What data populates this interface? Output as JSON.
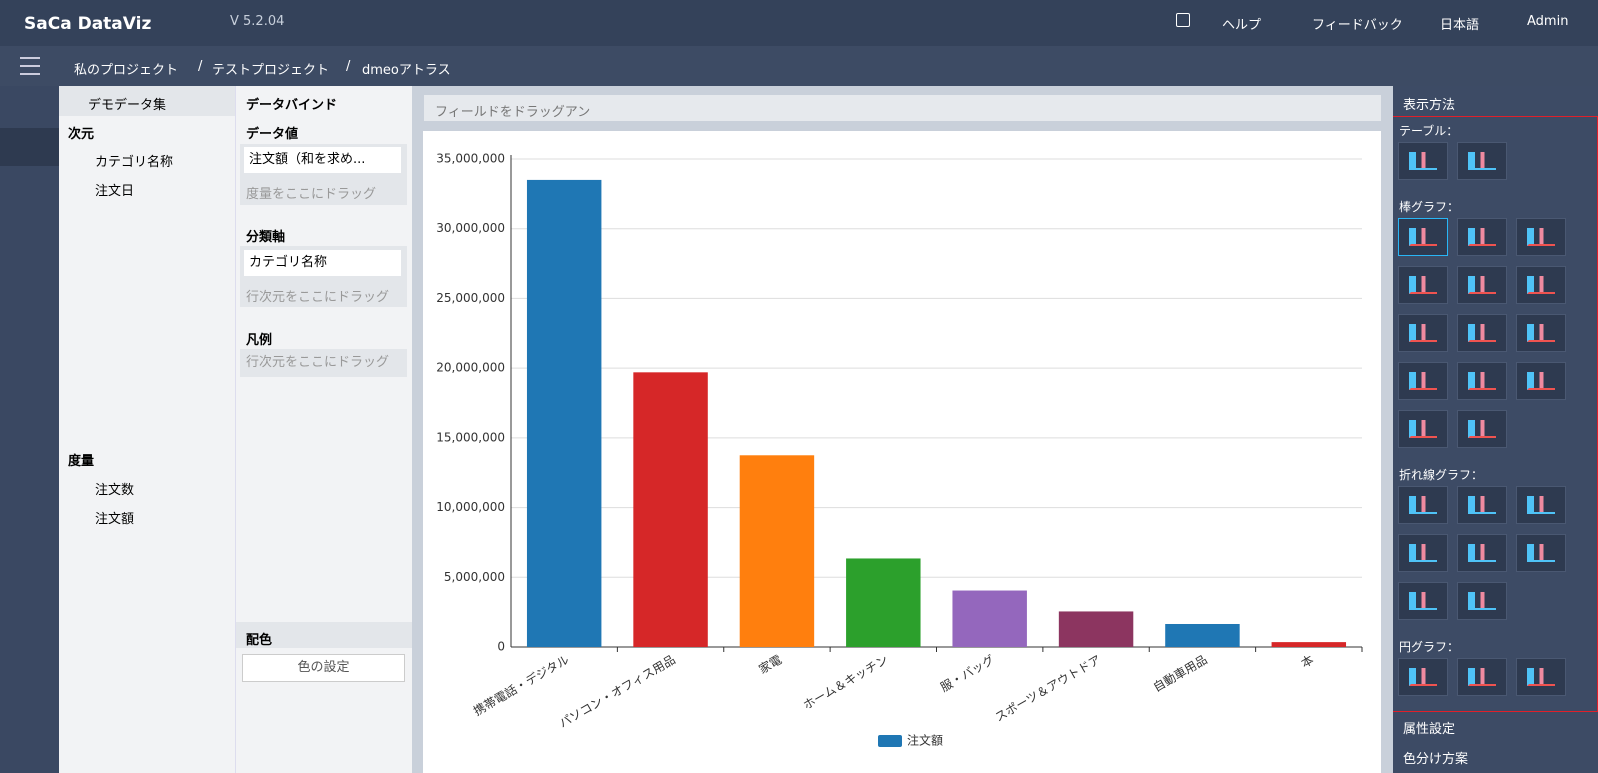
{
  "header": {
    "logo": "SaCa DataViz",
    "version": "V 5.2.04",
    "help": "ヘルプ",
    "feedback": "フィードバック",
    "language": "日本語",
    "user": "Admin"
  },
  "breadcrumb": {
    "items": [
      "私のプロジェクト",
      "テストプロジェクト",
      "dmeoアトラス"
    ],
    "separator": "/"
  },
  "dataset": {
    "title": "デモデータ集",
    "dimensions_label": "次元",
    "dimensions": [
      "カテゴリ名称",
      "注文日"
    ],
    "measures_label": "度量",
    "measures": [
      "注文数",
      "注文額"
    ]
  },
  "binding": {
    "title": "データバインド",
    "value_label": "データ値",
    "value_field": "注文額（和を求め...",
    "value_hint": "度量をここにドラッグ",
    "axis_label": "分類軸",
    "axis_field": "カテゴリ名称",
    "axis_hint": "行次元をここにドラッグ",
    "legend_label": "凡例",
    "legend_hint": "行次元をここにドラッグ",
    "color_label": "配色",
    "color_button": "色の設定"
  },
  "canvas_hint": "フィールドをドラッグアン",
  "chart_data": {
    "type": "bar",
    "categories": [
      "携帯電話・デジタル",
      "パソコン・オフィス用品",
      "家電",
      "ホーム＆キッチン",
      "服・バッグ",
      "スポーツ＆アウトドア",
      "自動車用品",
      "本"
    ],
    "series": [
      {
        "name": "注文額",
        "color": "#1f77b4",
        "colors": [
          "#1f77b4",
          "#d62728",
          "#ff7f0e",
          "#2ca02c",
          "#9467bd",
          "#8c3560",
          "#1f77b4",
          "#d62728"
        ],
        "values": [
          33500000,
          19700000,
          13750000,
          6350000,
          4050000,
          2550000,
          1650000,
          350000
        ]
      }
    ],
    "ylim": [
      0,
      35000000
    ],
    "yticks": [
      0,
      {
        "value": 5000000,
        "label": "5,000,000"
      },
      {
        "value": 10000000,
        "label": "10,000,000"
      },
      {
        "value": 15000000,
        "label": "15,000,000"
      },
      {
        "value": 20000000,
        "label": "20,000,000"
      },
      {
        "value": 25000000,
        "label": "25,000,000"
      },
      {
        "value": 30000000,
        "label": "30,000,000"
      },
      {
        "value": 35000000,
        "label": "35,000,000"
      }
    ],
    "grid": true,
    "legend": "bottom"
  },
  "display": {
    "title": "表示方法",
    "sections": [
      "テーブル：",
      "棒グラフ：",
      "折れ線グラフ：",
      "円グラフ："
    ],
    "attributes": "属性設定",
    "color_scheme": "色分け方案"
  }
}
